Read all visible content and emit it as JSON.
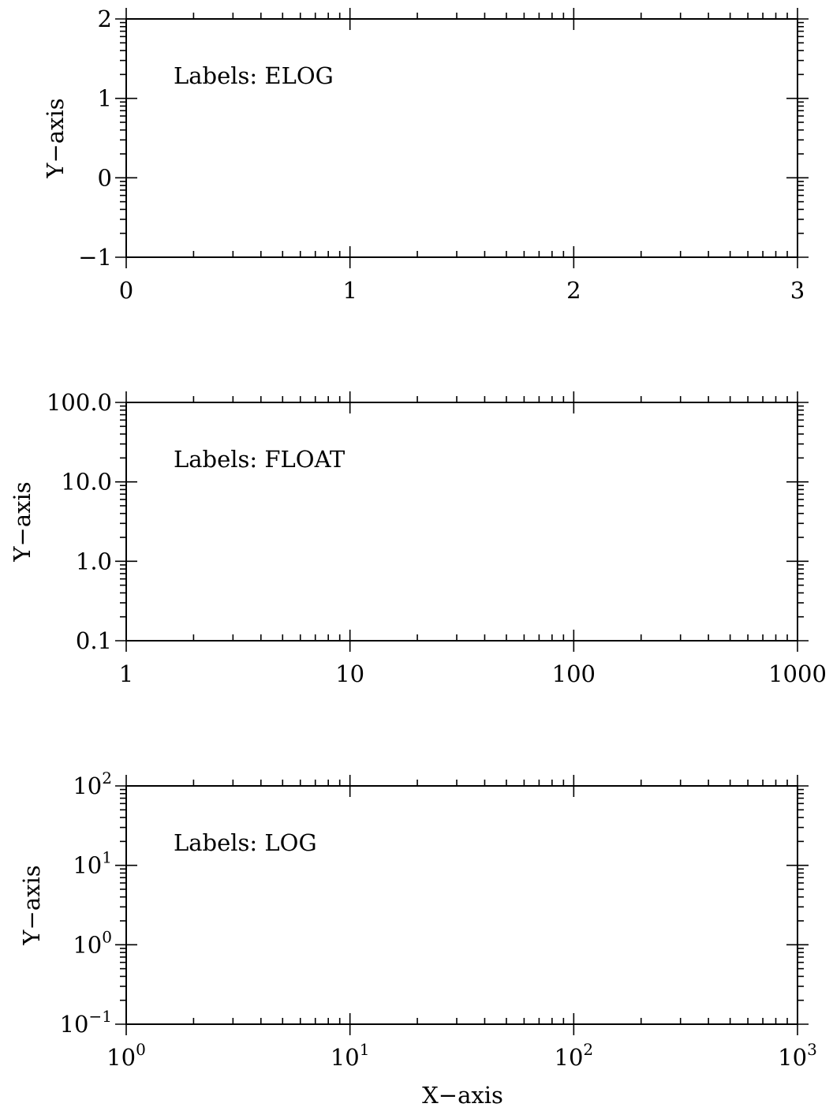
{
  "chart_data": [
    {
      "type": "axes",
      "label_text": "Labels: ELOG",
      "ylabel": "Y−axis",
      "xlabel": "",
      "x_scale": "linear",
      "y_scale": "linear",
      "xlim": [
        0,
        3
      ],
      "ylim": [
        -1,
        2
      ],
      "x_ticks": [
        {
          "value": 0,
          "label": "0"
        },
        {
          "value": 1,
          "label": "1"
        },
        {
          "value": 2,
          "label": "2"
        },
        {
          "value": 3,
          "label": "3"
        }
      ],
      "y_ticks": [
        {
          "value": -1,
          "label": "−1"
        },
        {
          "value": 0,
          "label": "0"
        },
        {
          "value": 1,
          "label": "1"
        },
        {
          "value": 2,
          "label": "2"
        }
      ],
      "x_minor": "log-decades",
      "y_minor": "log-decades",
      "grid": false,
      "series": []
    },
    {
      "type": "axes",
      "label_text": "Labels: FLOAT",
      "ylabel": "Y−axis",
      "xlabel": "",
      "x_scale": "log",
      "y_scale": "log",
      "xlim": [
        1,
        1000
      ],
      "ylim": [
        0.1,
        100
      ],
      "x_ticks": [
        {
          "value": 1,
          "label": "1"
        },
        {
          "value": 10,
          "label": "10"
        },
        {
          "value": 100,
          "label": "100"
        },
        {
          "value": 1000,
          "label": "1000"
        }
      ],
      "y_ticks": [
        {
          "value": 0.1,
          "label": "0.1"
        },
        {
          "value": 1,
          "label": "1.0"
        },
        {
          "value": 10,
          "label": "10.0"
        },
        {
          "value": 100,
          "label": "100.0"
        }
      ],
      "grid": false,
      "series": []
    },
    {
      "type": "axes",
      "label_text": "Labels: LOG",
      "ylabel": "Y−axis",
      "xlabel": "X−axis",
      "x_scale": "log",
      "y_scale": "log",
      "xlim": [
        1,
        1000
      ],
      "ylim": [
        0.1,
        100
      ],
      "x_ticks": [
        {
          "value": 1,
          "base": "10",
          "exp": "0"
        },
        {
          "value": 10,
          "base": "10",
          "exp": "1"
        },
        {
          "value": 100,
          "base": "10",
          "exp": "2"
        },
        {
          "value": 1000,
          "base": "10",
          "exp": "3"
        }
      ],
      "y_ticks": [
        {
          "value": 0.1,
          "base": "10",
          "exp": "−1"
        },
        {
          "value": 1,
          "base": "10",
          "exp": "0"
        },
        {
          "value": 10,
          "base": "10",
          "exp": "1"
        },
        {
          "value": 100,
          "base": "10",
          "exp": "2"
        }
      ],
      "grid": false,
      "series": []
    }
  ]
}
